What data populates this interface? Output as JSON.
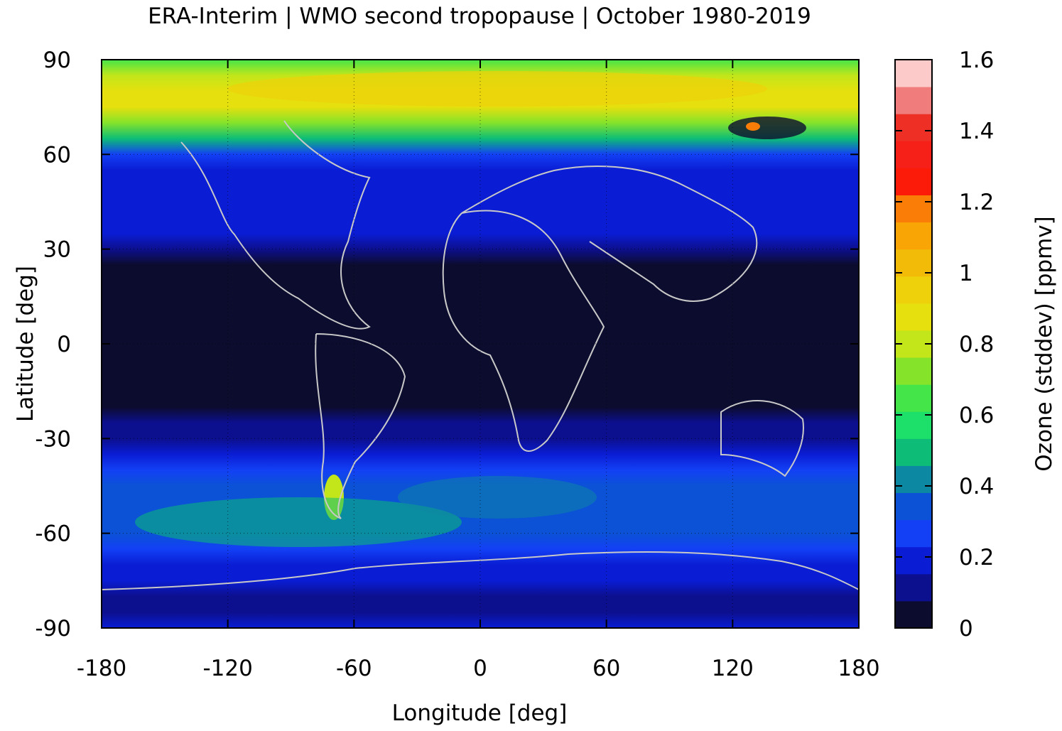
{
  "chart_data": {
    "type": "heatmap",
    "title": "ERA-Interim | WMO second tropopause | October 1980-2019",
    "xlabel": "Longitude [deg]",
    "ylabel": "Latitude [deg]",
    "xlim": [
      -180,
      180
    ],
    "ylim": [
      -90,
      90
    ],
    "x_ticks": [
      -180,
      -120,
      -60,
      0,
      60,
      120,
      180
    ],
    "y_ticks": [
      90,
      60,
      30,
      0,
      -30,
      -60,
      -90
    ],
    "x_tick_labels": [
      "-180",
      "-120",
      "-60",
      "0",
      "60",
      "120",
      "180"
    ],
    "y_tick_labels": [
      "90",
      "60",
      "30",
      "0",
      "-30",
      "-60",
      "-90"
    ],
    "grid": true,
    "colorbar": {
      "label": "Ozone (stddev) [ppmv]",
      "range": [
        0,
        1.6
      ],
      "tick_values": [
        1.6,
        1.4,
        1.2,
        1,
        0.8,
        0.6,
        0.4,
        0.2,
        0
      ],
      "tick_labels": [
        "1.6",
        "1.4",
        "1.2",
        "1",
        "0.8",
        "0.6",
        "0.4",
        "0.2",
        "0"
      ],
      "colors": [
        "#0c0c2e",
        "#0c0f8e",
        "#0a1dd4",
        "#1340f5",
        "#0b52d6",
        "#0d88a2",
        "#0dbd77",
        "#1de06a",
        "#44e548",
        "#85e32a",
        "#c2e61a",
        "#e5e00e",
        "#eed10a",
        "#f2bb08",
        "#f9a505",
        "#fa7d07",
        "#fb1b08",
        "#f72018",
        "#ee2f26",
        "#f07c7c",
        "#fdcaca"
      ]
    },
    "latitude_profile": {
      "lat": [
        90,
        85,
        80,
        75,
        70,
        65,
        60,
        55,
        50,
        45,
        40,
        35,
        30,
        25,
        20,
        10,
        0,
        -10,
        -20,
        -25,
        -30,
        -35,
        -40,
        -45,
        -50,
        -55,
        -60,
        -65,
        -70,
        -75,
        -80,
        -85,
        -90
      ],
      "ozone_stddev_ppmv": [
        0.62,
        0.78,
        0.86,
        0.84,
        0.72,
        0.52,
        0.3,
        0.22,
        0.2,
        0.18,
        0.17,
        0.16,
        0.08,
        0.04,
        0.03,
        0.03,
        0.03,
        0.03,
        0.04,
        0.1,
        0.15,
        0.2,
        0.26,
        0.33,
        0.37,
        0.38,
        0.35,
        0.28,
        0.2,
        0.16,
        0.14,
        0.1,
        0.16
      ]
    }
  }
}
